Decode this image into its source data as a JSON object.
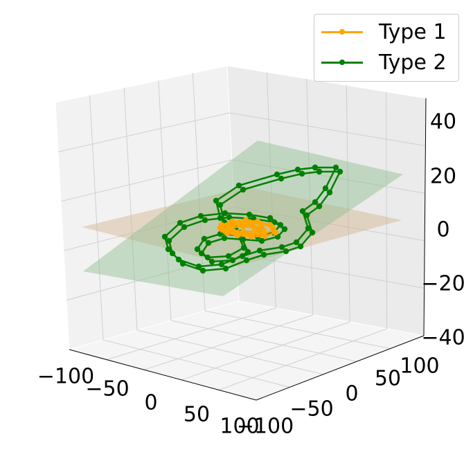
{
  "chart_data": {
    "type": "line3d",
    "title": "",
    "xlabel": "",
    "ylabel": "",
    "zlabel": "",
    "xlim": [
      -100,
      100
    ],
    "ylim": [
      -100,
      100
    ],
    "zlim": [
      -40,
      40
    ],
    "x_ticks": [
      "−100",
      "−50",
      "0",
      "50",
      "100"
    ],
    "y_ticks": [
      "−100",
      "−50",
      "0",
      "50",
      "100"
    ],
    "z_ticks": [
      "−40",
      "−20",
      "0",
      "20",
      "40"
    ],
    "grid": true,
    "legend_position": "top-right",
    "colors": {
      "type1": "#ffa500",
      "type2": "#008000"
    },
    "planes": [
      {
        "color": "#d2b48c",
        "opacity": 0.45
      },
      {
        "color": "#8fbc8f",
        "opacity": 0.45
      }
    ],
    "series": [
      {
        "name": "Type 1",
        "color": "#ffa500",
        "marker": "circle"
      },
      {
        "name": "Type 2",
        "color": "#008000",
        "marker": "circle"
      }
    ]
  },
  "legend": {
    "items": [
      {
        "label": "Type 1",
        "color": "#ffa500"
      },
      {
        "label": "Type 2",
        "color": "#008000"
      }
    ]
  }
}
